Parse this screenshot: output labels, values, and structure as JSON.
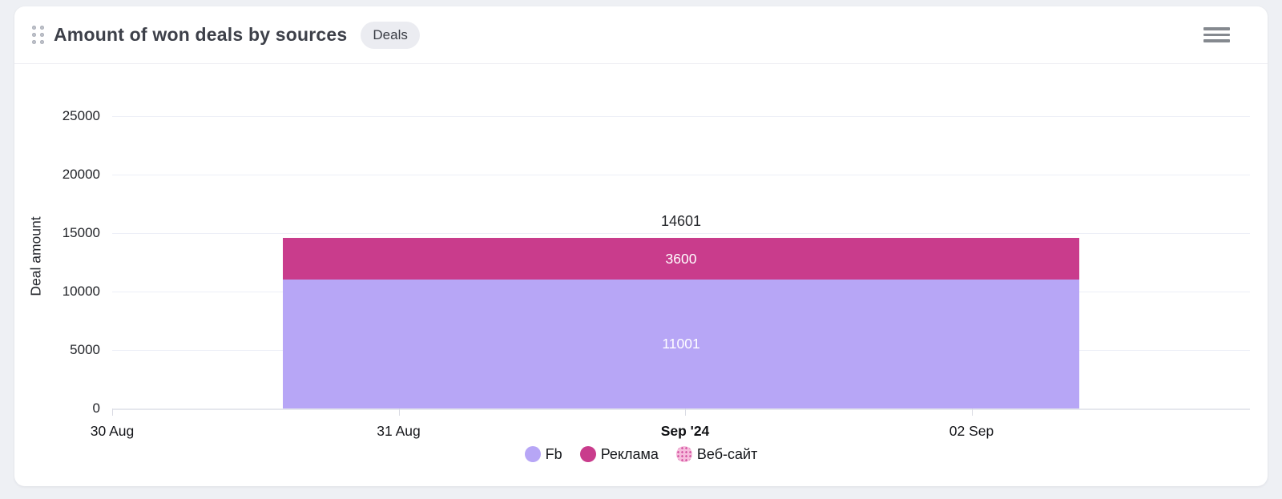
{
  "header": {
    "title": "Amount of won deals by sources",
    "badge": "Deals"
  },
  "icons": {
    "drag_handle": "grip-dots-2x3",
    "menu": "hamburger-3-lines"
  },
  "colors": {
    "page_background": "#eef0f4",
    "card_background": "#ffffff",
    "series_fb": "#b7a6f6",
    "series_reklama": "#c93c8c",
    "series_website_base": "#f6bcdc",
    "series_website_dots": "#d65ca6"
  },
  "chart_data": {
    "type": "bar",
    "stacked": true,
    "title": "Amount of won deals by sources",
    "xlabel": "",
    "ylabel": "Deal amount",
    "ylim": [
      0,
      25000
    ],
    "yticks": [
      0,
      5000,
      10000,
      15000,
      20000,
      25000
    ],
    "grid": true,
    "legend_position": "bottom",
    "categories": [
      "30 Aug",
      "31 Aug",
      "Sep '24",
      "02 Sep"
    ],
    "x_bold": [
      false,
      false,
      true,
      false
    ],
    "bar_category": "Sep '24",
    "series": [
      {
        "name": "Fb",
        "value": 11001,
        "color": "#b7a6f6",
        "label_color": "#ffffff"
      },
      {
        "name": "Реклама",
        "value": 3600,
        "color": "#c93c8c",
        "label_color": "#ffffff"
      },
      {
        "name": "Веб-сайт",
        "value": null,
        "color": "#f6bcdc",
        "legend_pattern": true,
        "pattern_dot_color": "#d65ca6"
      }
    ],
    "total_label": 14601
  }
}
